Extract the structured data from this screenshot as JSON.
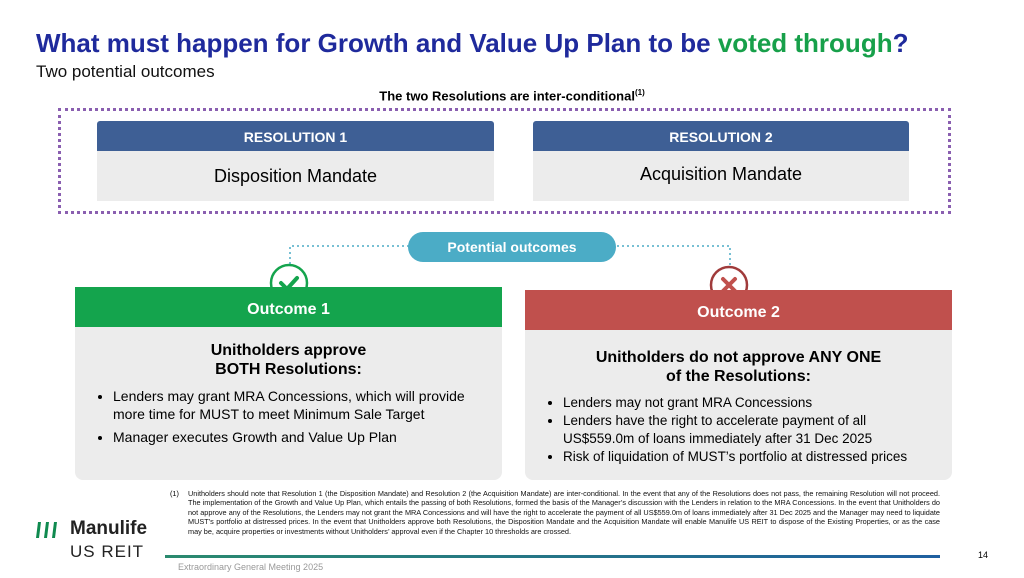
{
  "header": {
    "title_parts": [
      "What must happen for Growth and Value Up Plan to be ",
      "voted through",
      "?"
    ],
    "subtitle": "Two potential outcomes"
  },
  "resolutions_heading": {
    "text": "The two Resolutions are inter-conditional",
    "note": "(1)"
  },
  "resolutions": [
    {
      "label": "RESOLUTION 1",
      "name": "Disposition Mandate"
    },
    {
      "label": "RESOLUTION 2",
      "name": "Acquisition Mandate"
    }
  ],
  "outcomes_label": "Potential outcomes",
  "outcomes": [
    {
      "title": "Outcome 1",
      "heading": [
        "Unitholders approve",
        "BOTH Resolutions:"
      ],
      "bullets": [
        "Lenders may grant MRA Concessions, which will provide more time for MUST to meet Minimum Sale Target",
        "Manager executes Growth and Value Up Plan"
      ]
    },
    {
      "title": "Outcome 2",
      "heading": [
        "Unitholders do not approve ANY ONE",
        "of the Resolutions:"
      ],
      "bullets": [
        "Lenders may not grant MRA Concessions",
        "Lenders have the right to accelerate payment of all US$559.0m of loans immediately after 31 Dec 2025",
        "Risk of liquidation of MUST’s portfolio at distressed prices"
      ]
    }
  ],
  "footnote": {
    "marker": "(1)",
    "text": "Unitholders should note that Resolution 1 (the Disposition Mandate) and Resolution 2 (the Acquisition Mandate) are inter-conditional. In the event that any of the Resolutions does not pass, the remaining Resolution will not proceed. The implementation of the Growth and Value Up Plan, which entails the passing of both Resolutions, formed the basis of the Manager’s discussion with the Lenders in relation to the MRA Concessions. In the event that Unitholders do not approve any of the Resolutions, the Lenders may not grant the MRA Concessions and will have the right to accelerate the payment of all US$559.0m of loans immediately after 31 Dec 2025 and the Manager may need to liquidate MUST’s portfolio at distressed prices. In the event that Unitholders approve both Resolutions, the Disposition Mandate and the Acquisition Mandate will enable Manulife US REIT to dispose of the Existing Properties, or as the case may be, acquire properties or investments without Unitholders’ approval even if the Chapter 10 thresholds are crossed."
  },
  "logo": {
    "name": "Manulife",
    "sub": "US REIT"
  },
  "page_number": "14",
  "footer": "Extraordinary General Meeting 2025"
}
